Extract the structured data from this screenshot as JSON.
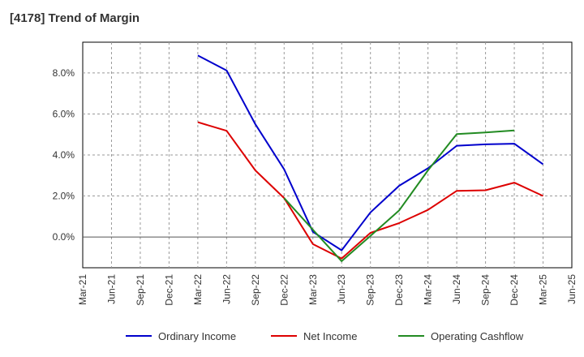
{
  "title": "[4178]  Trend of Margin",
  "chart_data": {
    "type": "line",
    "title": "[4178]  Trend of Margin",
    "x": [
      "Mar-21",
      "Jun-21",
      "Sep-21",
      "Dec-21",
      "Mar-22",
      "Jun-22",
      "Sep-22",
      "Dec-22",
      "Mar-23",
      "Jun-23",
      "Sep-23",
      "Dec-23",
      "Mar-24",
      "Jun-24",
      "Sep-24",
      "Dec-24",
      "Mar-25",
      "Jun-25"
    ],
    "ylim": [
      -1.5,
      9.5
    ],
    "yticks": [
      0.0,
      2.0,
      4.0,
      6.0,
      8.0
    ],
    "ytick_labels": [
      "0.0%",
      "2.0%",
      "4.0%",
      "6.0%",
      "8.0%"
    ],
    "grid": true,
    "legend_position": "bottom",
    "series": [
      {
        "name": "Ordinary Income",
        "color": "#0000cc",
        "values": [
          null,
          null,
          null,
          null,
          8.85,
          8.12,
          5.5,
          3.3,
          0.25,
          -0.65,
          1.2,
          2.5,
          3.35,
          4.45,
          4.52,
          4.55,
          3.55,
          null
        ]
      },
      {
        "name": "Net Income",
        "color": "#dd0000",
        "values": [
          null,
          null,
          null,
          null,
          5.6,
          5.18,
          3.25,
          1.9,
          -0.35,
          -1.05,
          0.2,
          0.68,
          1.32,
          2.25,
          2.28,
          2.65,
          2.0,
          null
        ]
      },
      {
        "name": "Operating Cashflow",
        "color": "#228b22",
        "values": [
          null,
          null,
          null,
          null,
          null,
          null,
          null,
          1.9,
          0.35,
          -1.18,
          0.05,
          1.3,
          3.25,
          5.02,
          5.1,
          5.2,
          null,
          null
        ]
      }
    ]
  }
}
